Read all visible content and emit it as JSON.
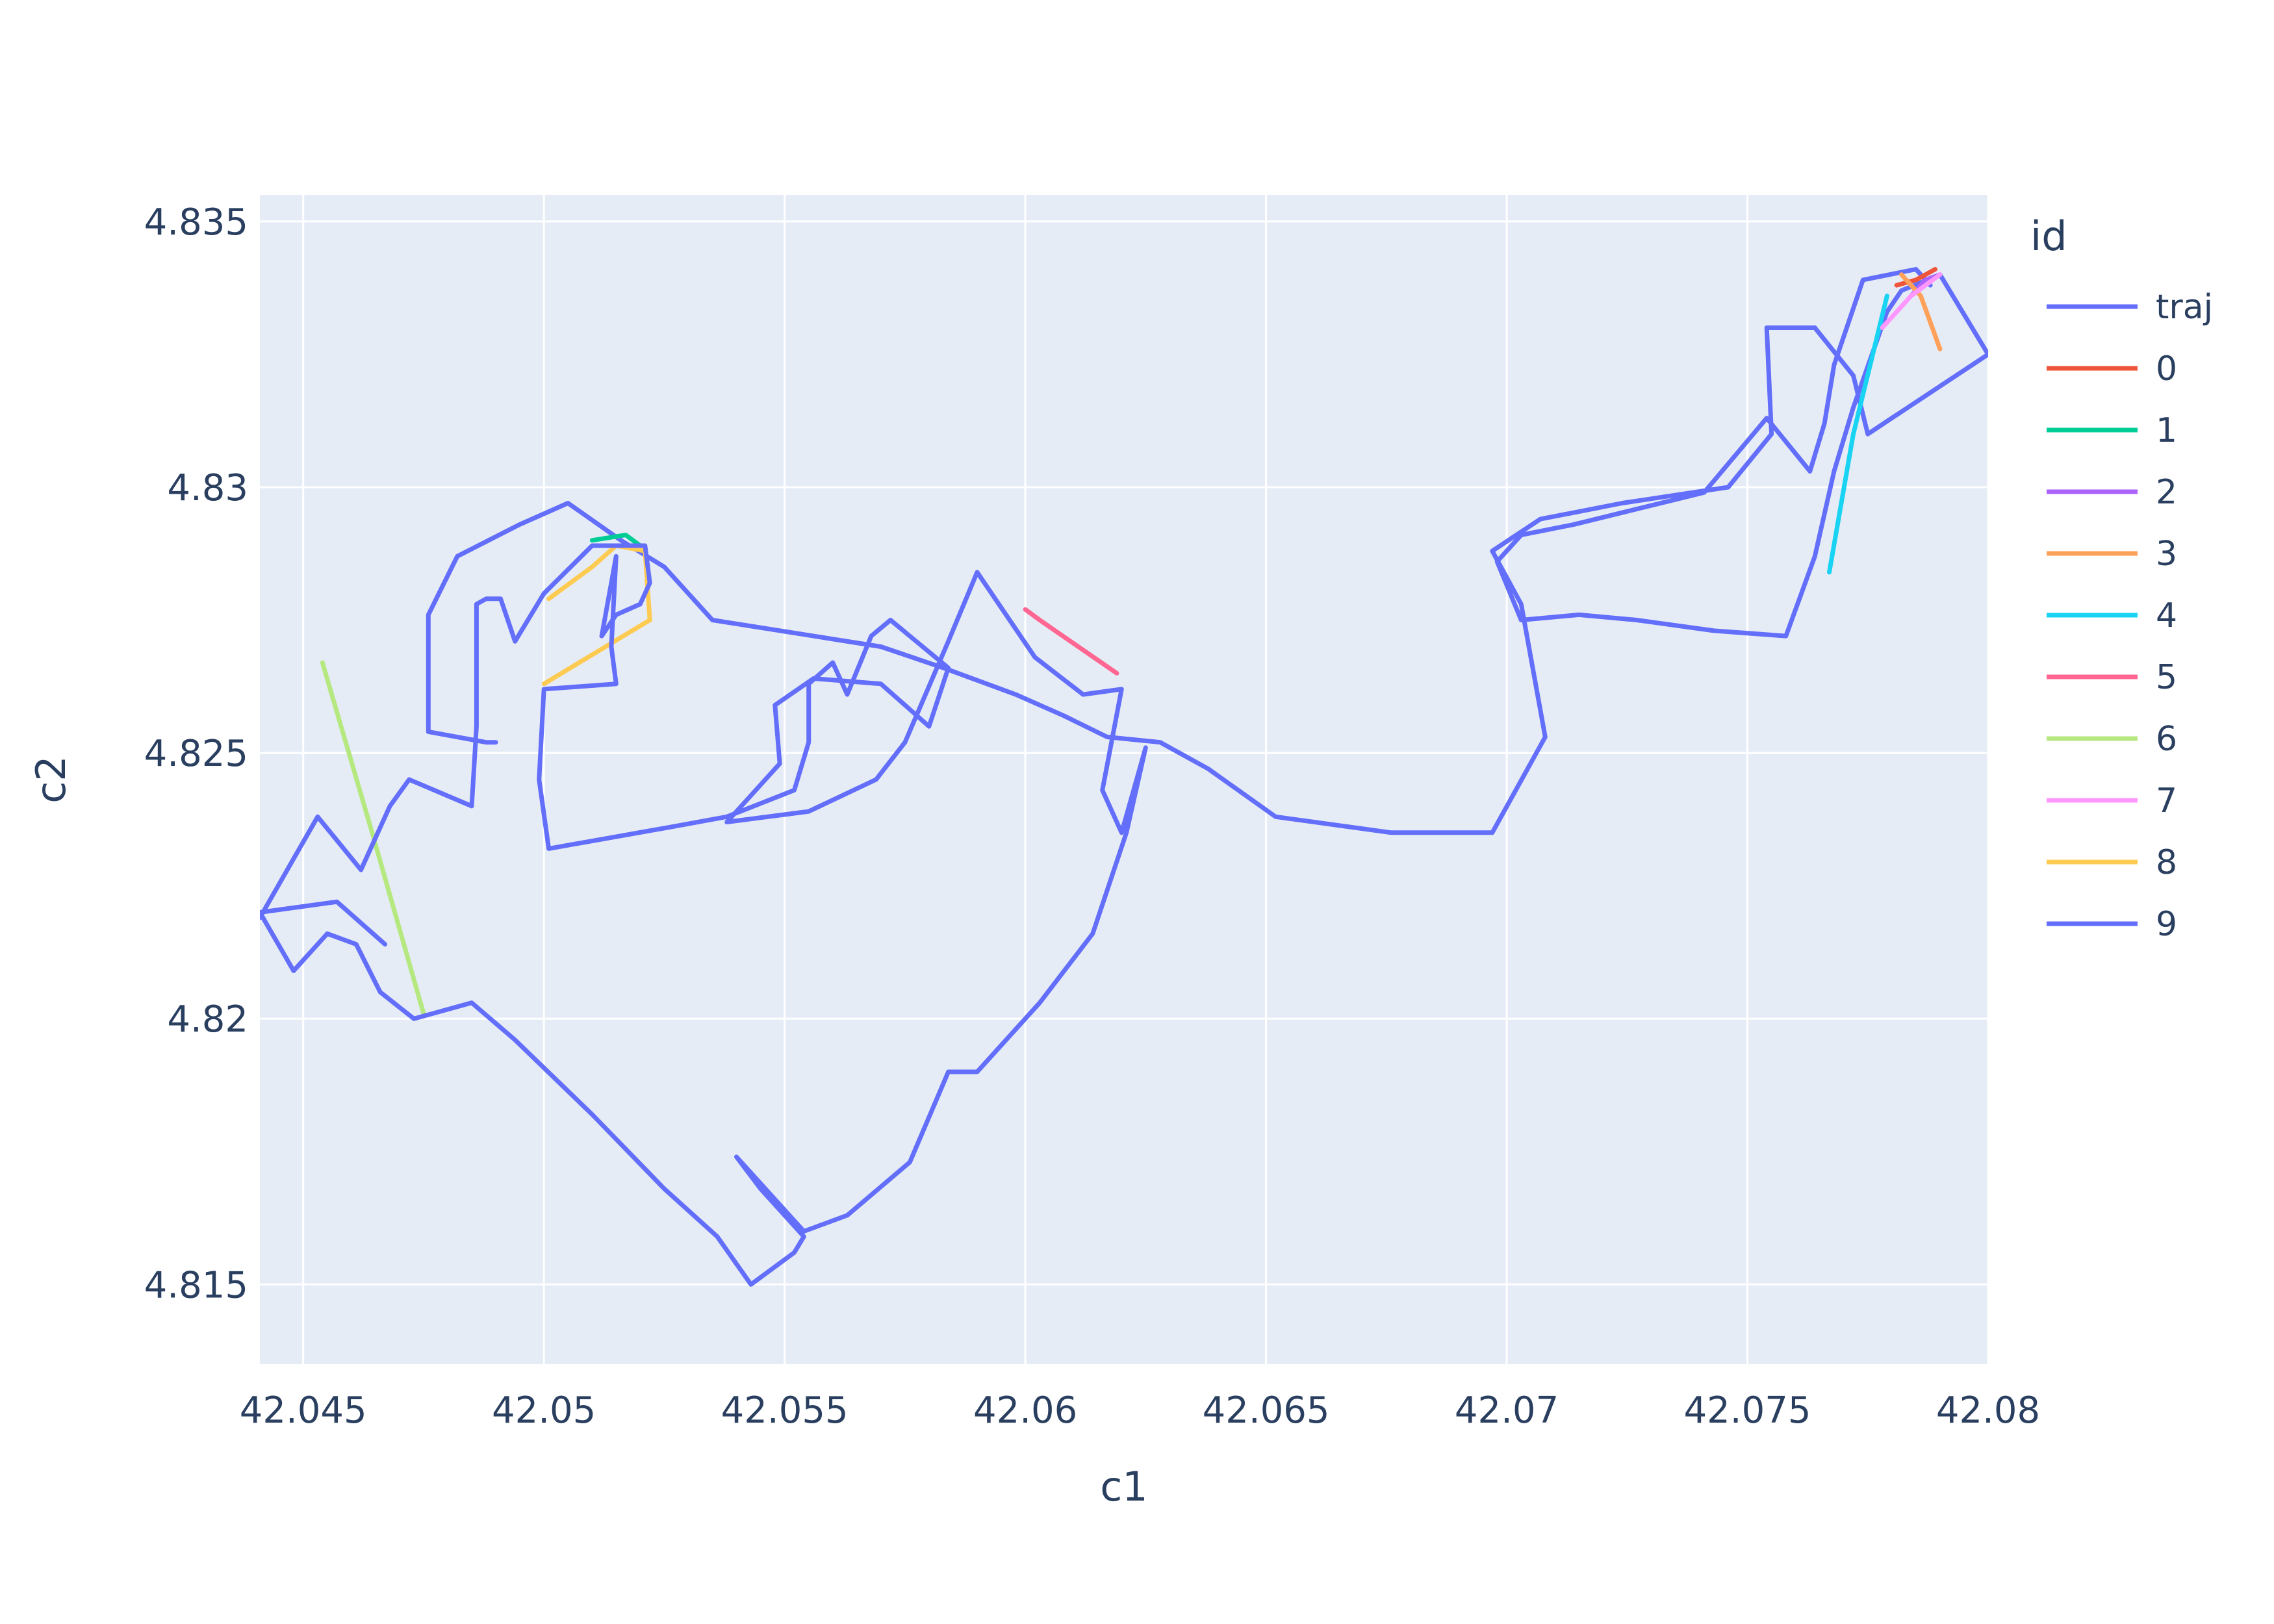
{
  "chart_data": {
    "type": "line",
    "xlabel": "c1",
    "ylabel": "c2",
    "xlim": [
      42.0441,
      42.08
    ],
    "ylim": [
      4.8135,
      4.8355
    ],
    "x_ticks": [
      {
        "value": 42.045,
        "label": "42.045"
      },
      {
        "value": 42.05,
        "label": "42.05"
      },
      {
        "value": 42.055,
        "label": "42.055"
      },
      {
        "value": 42.06,
        "label": "42.06"
      },
      {
        "value": 42.065,
        "label": "42.065"
      },
      {
        "value": 42.07,
        "label": "42.07"
      },
      {
        "value": 42.075,
        "label": "42.075"
      },
      {
        "value": 42.08,
        "label": "42.08"
      }
    ],
    "y_ticks": [
      {
        "value": 4.815,
        "label": "4.815"
      },
      {
        "value": 4.82,
        "label": "4.82"
      },
      {
        "value": 4.825,
        "label": "4.825"
      },
      {
        "value": 4.83,
        "label": "4.83"
      },
      {
        "value": 4.835,
        "label": "4.835"
      }
    ],
    "grid": true,
    "background": "#e5ecf6",
    "legend": {
      "title": "id",
      "placement": "right"
    },
    "series": [
      {
        "name": "traj",
        "color": "#636efa",
        "points": [
          [
            42.0788,
            4.8338
          ],
          [
            42.0785,
            4.8341
          ],
          [
            42.0774,
            4.8339
          ],
          [
            42.0768,
            4.8323
          ],
          [
            42.0766,
            4.8312
          ],
          [
            42.0763,
            4.8303
          ],
          [
            42.0754,
            4.8313
          ],
          [
            42.0741,
            4.8299
          ],
          [
            42.0714,
            4.8293
          ],
          [
            42.0703,
            4.8291
          ],
          [
            42.0698,
            4.8286
          ],
          [
            42.0703,
            4.8275
          ],
          [
            42.0715,
            4.8276
          ],
          [
            42.0727,
            4.8275
          ],
          [
            42.0743,
            4.8273
          ],
          [
            42.0758,
            4.8272
          ],
          [
            42.0764,
            4.8287
          ],
          [
            42.0768,
            4.8303
          ],
          [
            42.0772,
            4.8315
          ],
          [
            42.0779,
            4.8333
          ],
          [
            42.0782,
            4.8337
          ],
          [
            42.079,
            4.834
          ],
          [
            42.08,
            4.8325
          ],
          [
            42.078,
            4.8313
          ],
          [
            42.0775,
            4.831
          ],
          [
            42.0772,
            4.8321
          ],
          [
            42.0764,
            4.833
          ],
          [
            42.0754,
            4.833
          ],
          [
            42.0755,
            4.831
          ],
          [
            42.0746,
            4.83
          ],
          [
            42.0724,
            4.8297
          ],
          [
            42.0707,
            4.8294
          ],
          [
            42.0697,
            4.8288
          ],
          [
            42.0703,
            4.8278
          ],
          [
            42.0708,
            4.8253
          ],
          [
            42.0697,
            4.8235
          ],
          [
            42.0676,
            4.8235
          ],
          [
            42.0652,
            4.8238
          ],
          [
            42.0638,
            4.8247
          ],
          [
            42.0628,
            4.8252
          ],
          [
            42.0617,
            4.8253
          ],
          [
            42.0608,
            4.8257
          ],
          [
            42.0598,
            4.8261
          ],
          [
            42.0583,
            4.8266
          ],
          [
            42.057,
            4.827
          ],
          [
            42.0556,
            4.8272
          ],
          [
            42.0535,
            4.8275
          ],
          [
            42.0525,
            4.8285
          ],
          [
            42.0516,
            4.829
          ],
          [
            42.0505,
            4.8297
          ],
          [
            42.0495,
            4.8293
          ],
          [
            42.0482,
            4.8287
          ],
          [
            42.0476,
            4.8276
          ],
          [
            42.0476,
            4.8254
          ],
          [
            42.0488,
            4.8252
          ],
          [
            42.049,
            4.8252
          ]
        ]
      },
      {
        "name": "0",
        "color": "#ef553b",
        "points": [
          [
            42.0781,
            4.8338
          ],
          [
            42.0785,
            4.8339
          ],
          [
            42.0789,
            4.8341
          ]
        ]
      },
      {
        "name": "1",
        "color": "#00cc96",
        "points": [
          [
            42.051,
            4.829
          ],
          [
            42.0517,
            4.8291
          ],
          [
            42.052,
            4.8289
          ]
        ]
      },
      {
        "name": "2",
        "color": "#ab63fa",
        "points": [
          [
            42.0784,
            4.8336
          ],
          [
            42.0787,
            4.8339
          ],
          [
            42.079,
            4.834
          ]
        ]
      },
      {
        "name": "3",
        "color": "#ffa15a",
        "points": [
          [
            42.0782,
            4.834
          ],
          [
            42.0786,
            4.8336
          ],
          [
            42.079,
            4.8326
          ]
        ]
      },
      {
        "name": "4",
        "color": "#19d3f3",
        "points": [
          [
            42.0767,
            4.8284
          ],
          [
            42.0772,
            4.831
          ],
          [
            42.0779,
            4.8336
          ]
        ]
      },
      {
        "name": "5",
        "color": "#ff6692",
        "points": [
          [
            42.06,
            4.8277
          ],
          [
            42.0603,
            4.8275
          ],
          [
            42.0619,
            4.8265
          ]
        ]
      },
      {
        "name": "6",
        "color": "#b6e880",
        "points": [
          [
            42.0454,
            4.8267
          ],
          [
            42.0464,
            4.8236
          ],
          [
            42.0475,
            4.8201
          ]
        ]
      },
      {
        "name": "7",
        "color": "#ff97ff",
        "points": [
          [
            42.0778,
            4.833
          ],
          [
            42.0784,
            4.8336
          ],
          [
            42.079,
            4.834
          ]
        ]
      },
      {
        "name": "8",
        "color": "#fecb52",
        "points": [
          [
            42.05,
            4.8263
          ],
          [
            42.0522,
            4.8275
          ],
          [
            42.0521,
            4.8288
          ],
          [
            42.0515,
            4.8289
          ],
          [
            42.051,
            4.8285
          ],
          [
            42.0501,
            4.8279
          ]
        ]
      },
      {
        "name": "9",
        "color": "#636efa",
        "points": [
          [
            42.0441,
            4.8219
          ],
          [
            42.0453,
            4.8238
          ],
          [
            42.0462,
            4.8228
          ],
          [
            42.0468,
            4.824
          ],
          [
            42.0472,
            4.8245
          ],
          [
            42.0485,
            4.824
          ],
          [
            42.0486,
            4.8255
          ],
          [
            42.0486,
            4.8278
          ],
          [
            42.0488,
            4.8279
          ],
          [
            42.0491,
            4.8279
          ],
          [
            42.0494,
            4.8271
          ],
          [
            42.05,
            4.828
          ],
          [
            42.051,
            4.8289
          ],
          [
            42.0521,
            4.8289
          ],
          [
            42.0522,
            4.8282
          ],
          [
            42.052,
            4.8278
          ],
          [
            42.0515,
            4.8276
          ],
          [
            42.0512,
            4.8272
          ],
          [
            42.0515,
            4.8287
          ],
          [
            42.0514,
            4.827
          ],
          [
            42.0515,
            4.8263
          ],
          [
            42.05,
            4.8262
          ],
          [
            42.0499,
            4.8245
          ],
          [
            42.0501,
            4.8232
          ],
          [
            42.0526,
            4.8236
          ],
          [
            42.0538,
            4.8238
          ],
          [
            42.0552,
            4.8243
          ],
          [
            42.0555,
            4.8252
          ],
          [
            42.0555,
            4.8263
          ],
          [
            42.056,
            4.8267
          ],
          [
            42.0563,
            4.8261
          ],
          [
            42.0568,
            4.8272
          ],
          [
            42.0572,
            4.8275
          ],
          [
            42.0584,
            4.8266
          ],
          [
            42.058,
            4.8255
          ],
          [
            42.057,
            4.8263
          ],
          [
            42.0556,
            4.8264
          ],
          [
            42.0548,
            4.8259
          ],
          [
            42.0549,
            4.8248
          ],
          [
            42.0538,
            4.8237
          ],
          [
            42.0555,
            4.8239
          ],
          [
            42.0569,
            4.8245
          ],
          [
            42.0575,
            4.8252
          ],
          [
            42.0584,
            4.8271
          ],
          [
            42.059,
            4.8284
          ],
          [
            42.0602,
            4.8268
          ],
          [
            42.0612,
            4.8261
          ],
          [
            42.062,
            4.8262
          ],
          [
            42.0616,
            4.8243
          ],
          [
            42.062,
            4.8235
          ],
          [
            42.0625,
            4.8251
          ],
          [
            42.0621,
            4.8235
          ],
          [
            42.0614,
            4.8216
          ],
          [
            42.0603,
            4.8203
          ],
          [
            42.059,
            4.819
          ],
          [
            42.0584,
            4.819
          ],
          [
            42.0576,
            4.8173
          ],
          [
            42.0563,
            4.8163
          ],
          [
            42.0554,
            4.816
          ],
          [
            42.054,
            4.8174
          ],
          [
            42.0545,
            4.8168
          ],
          [
            42.0554,
            4.8159
          ],
          [
            42.0552,
            4.8156
          ],
          [
            42.0543,
            4.815
          ],
          [
            42.0536,
            4.8159
          ],
          [
            42.0525,
            4.8168
          ],
          [
            42.051,
            4.8182
          ],
          [
            42.0494,
            4.8196
          ],
          [
            42.0485,
            4.8203
          ],
          [
            42.0473,
            4.82
          ],
          [
            42.0466,
            4.8205
          ],
          [
            42.0461,
            4.8214
          ],
          [
            42.0455,
            4.8216
          ],
          [
            42.0448,
            4.8209
          ],
          [
            42.0441,
            4.822
          ],
          [
            42.0457,
            4.8222
          ],
          [
            42.0467,
            4.8214
          ]
        ]
      }
    ]
  }
}
